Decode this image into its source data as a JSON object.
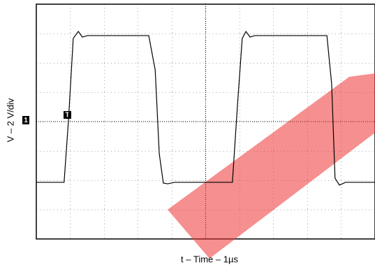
{
  "chart_data": {
    "type": "line",
    "xlabel": "t – Time – 1µs",
    "ylabel": "V – 2 V/div",
    "annotations": [
      "1",
      "T"
    ],
    "xlim": [
      0,
      10
    ],
    "ylim": [
      -8,
      8
    ],
    "x": [
      0,
      0.82,
      0.95,
      1.09,
      1.24,
      1.36,
      1.51,
      3.32,
      3.51,
      3.63,
      3.75,
      3.88,
      4.08,
      5.79,
      5.94,
      6.08,
      6.19,
      6.31,
      6.45,
      8.58,
      8.72,
      8.82,
      8.95,
      9.13,
      10
    ],
    "series": [
      {
        "color": "#000000",
        "values": [
          -4.14,
          -4.14,
          0.1,
          5.67,
          6.14,
          5.76,
          5.86,
          5.86,
          3.52,
          -2.19,
          -4.19,
          -4.24,
          -4.14,
          -4.14,
          1.14,
          5.67,
          6.14,
          5.76,
          5.86,
          5.86,
          2.57,
          -3.86,
          -4.33,
          -4.14,
          -4.14
        ]
      }
    ]
  }
}
